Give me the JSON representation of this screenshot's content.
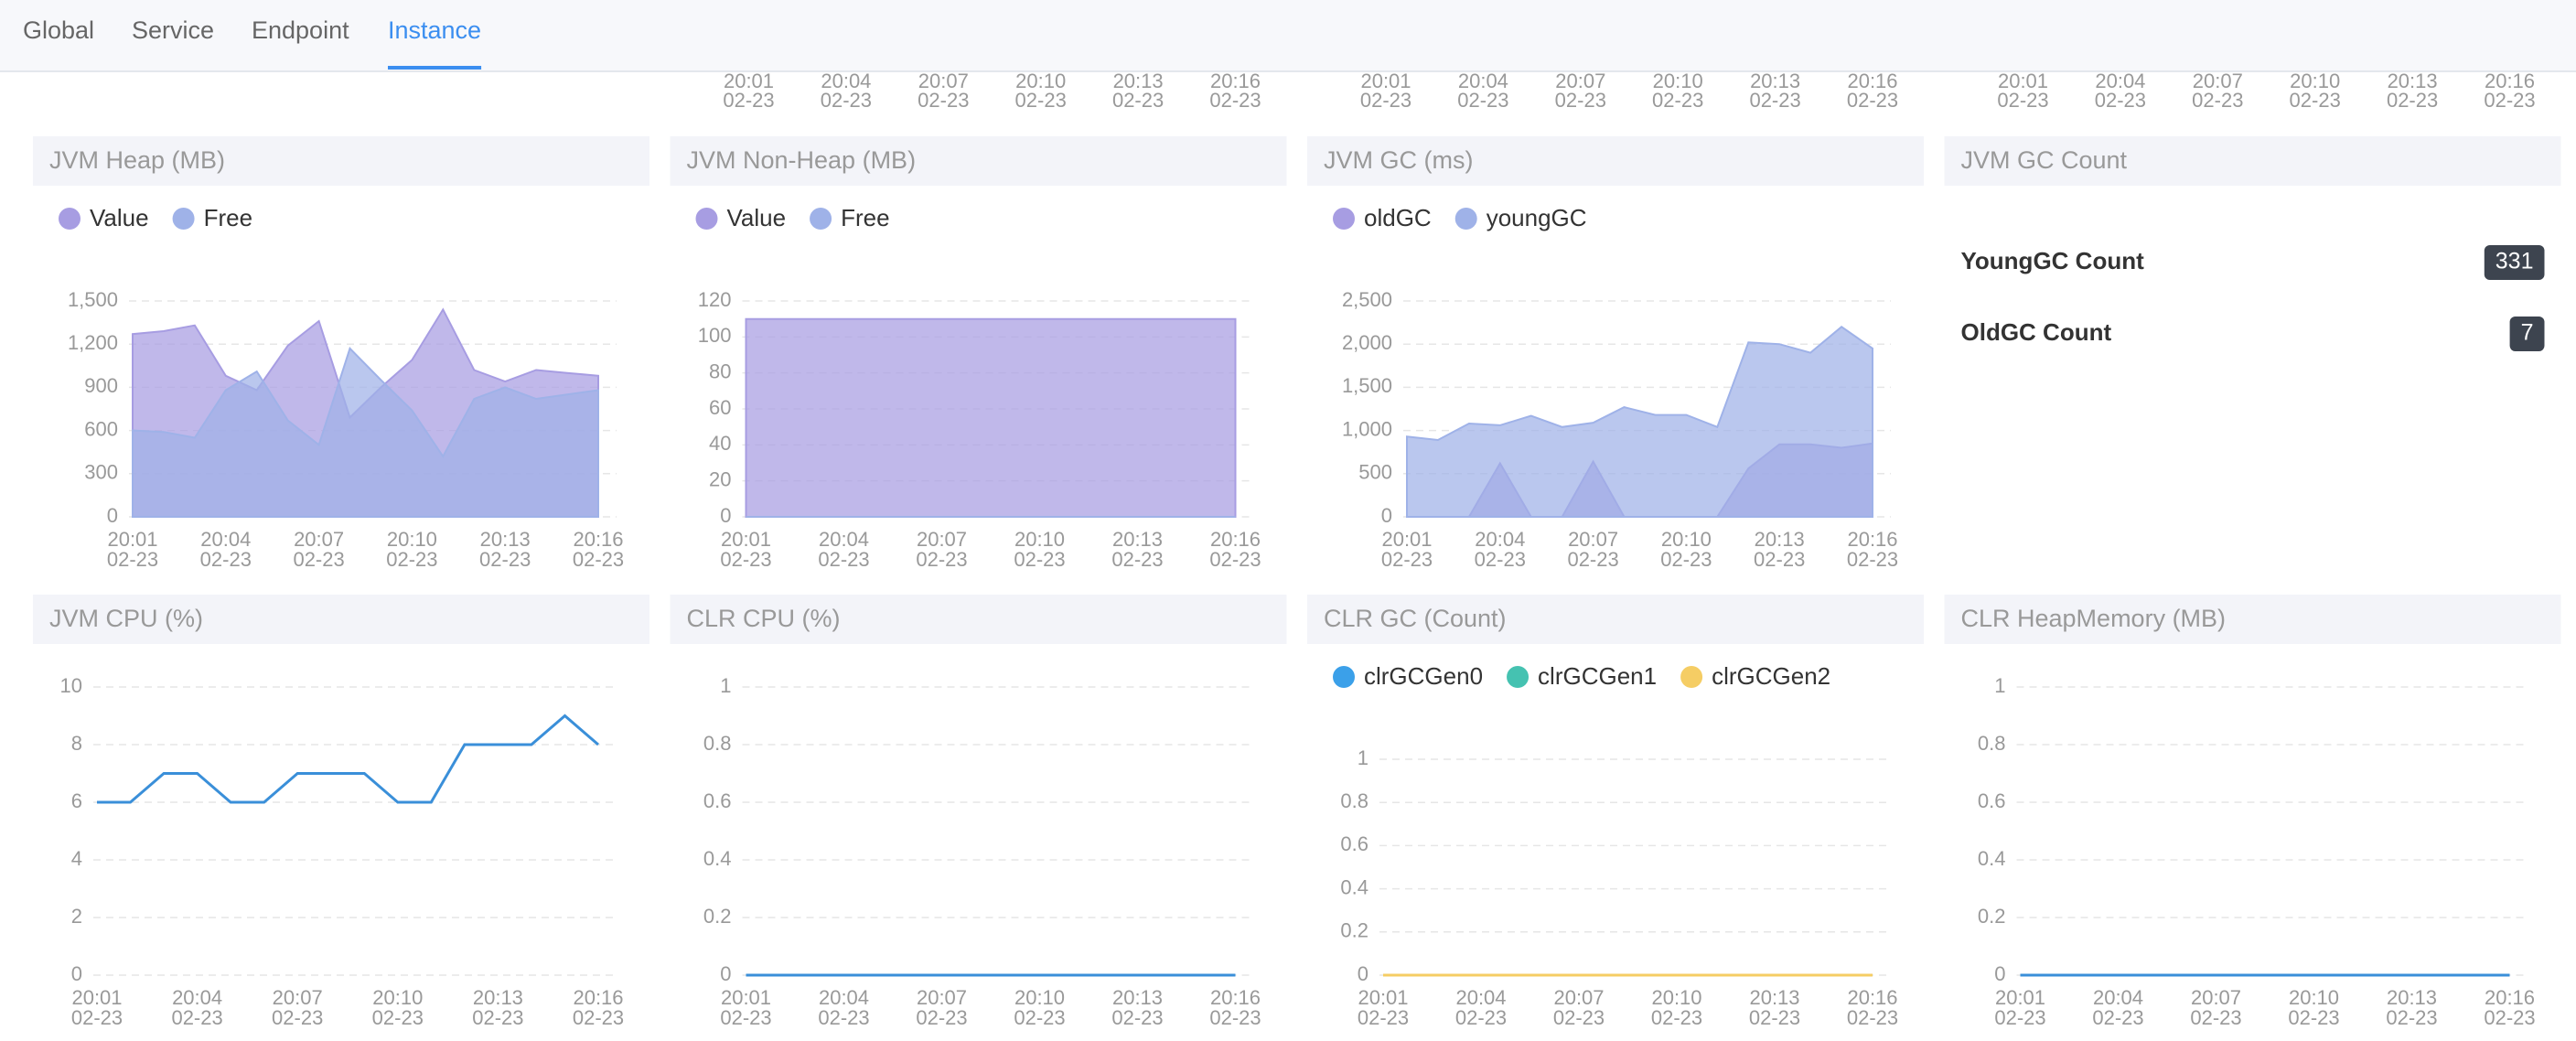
{
  "tabs": [
    "Global",
    "Service",
    "Endpoint",
    "Instance"
  ],
  "active_tab": 3,
  "time_axis": {
    "times": [
      "20:01",
      null,
      null,
      "20:04",
      null,
      null,
      "20:07",
      null,
      null,
      "20:10",
      null,
      null,
      "20:13",
      null,
      null,
      "20:16"
    ],
    "dates": [
      "02-23",
      null,
      null,
      "02-23",
      null,
      null,
      "02-23",
      null,
      null,
      "02-23",
      null,
      null,
      "02-23",
      null,
      null,
      "02-23"
    ]
  },
  "chart_data": [
    {
      "type": "area",
      "title": "JVM Heap (MB)",
      "grid": true,
      "ylim": [
        0,
        1500
      ],
      "yticks": [
        0,
        300,
        600,
        900,
        {
          "value": 1200,
          "label": "1,200"
        },
        {
          "value": 1500,
          "label": "1,500"
        }
      ],
      "series": [
        {
          "name": "Value",
          "color": "#a79de2",
          "values": [
            1270,
            1290,
            1330,
            980,
            880,
            1190,
            1360,
            690,
            900,
            1090,
            1440,
            1020,
            940,
            1020,
            1000,
            980
          ]
        },
        {
          "name": "Free",
          "color": "#9fb2e8",
          "values": [
            600,
            590,
            550,
            880,
            1010,
            670,
            500,
            1170,
            950,
            740,
            420,
            820,
            900,
            820,
            850,
            880
          ]
        }
      ]
    },
    {
      "type": "area",
      "title": "JVM Non-Heap (MB)",
      "grid": true,
      "ylim": [
        0,
        120
      ],
      "yticks": [
        0,
        20,
        40,
        60,
        80,
        100,
        120
      ],
      "series": [
        {
          "name": "Value",
          "color": "#a79de2",
          "values": [
            110,
            110,
            110,
            110,
            110,
            110,
            110,
            110,
            110,
            110,
            110,
            110,
            110,
            110,
            110,
            110
          ]
        },
        {
          "name": "Free",
          "color": "#9fb2e8",
          "values": [
            0,
            0,
            0,
            0,
            0,
            0,
            0,
            0,
            0,
            0,
            0,
            0,
            0,
            0,
            0,
            0
          ]
        }
      ]
    },
    {
      "type": "area",
      "title": "JVM GC (ms)",
      "grid": true,
      "ylim": [
        0,
        2500
      ],
      "yticks": [
        0,
        500,
        {
          "value": 1000,
          "label": "1,000"
        },
        {
          "value": 1500,
          "label": "1,500"
        },
        {
          "value": 2000,
          "label": "2,000"
        },
        {
          "value": 2500,
          "label": "2,500"
        }
      ],
      "series": [
        {
          "name": "oldGC",
          "color": "#a79de2",
          "values": [
            0,
            0,
            0,
            620,
            0,
            0,
            640,
            0,
            0,
            0,
            0,
            560,
            840,
            840,
            800,
            850
          ]
        },
        {
          "name": "youngGC",
          "color": "#9fb2e8",
          "values": [
            930,
            890,
            1080,
            1060,
            1170,
            1040,
            1090,
            1270,
            1180,
            1180,
            1040,
            2020,
            2000,
            1900,
            2200,
            1950
          ]
        }
      ]
    },
    {
      "type": "stat",
      "title": "JVM GC Count",
      "items": [
        {
          "label": "YoungGC Count",
          "value": 331
        },
        {
          "label": "OldGC Count",
          "value": 7
        }
      ]
    },
    {
      "type": "line",
      "title": "JVM CPU (%)",
      "grid": true,
      "ylim": [
        0,
        10
      ],
      "yticks": [
        0,
        2,
        4,
        6,
        8,
        10
      ],
      "series": [
        {
          "color": "#3a8fd9",
          "values": [
            6,
            6,
            7,
            7,
            6,
            6,
            7,
            7,
            7,
            6,
            6,
            8,
            8,
            8,
            9,
            8
          ]
        }
      ]
    },
    {
      "type": "line",
      "title": "CLR CPU (%)",
      "grid": true,
      "ylim": [
        0,
        1
      ],
      "yticks": [
        0,
        0.2,
        0.4,
        0.6,
        0.8,
        1
      ],
      "series": [
        {
          "color": "#3a8fd9",
          "values": [
            0,
            0,
            0,
            0,
            0,
            0,
            0,
            0,
            0,
            0,
            0,
            0,
            0,
            0,
            0,
            0
          ]
        }
      ]
    },
    {
      "type": "line",
      "title": "CLR GC (Count)",
      "grid": true,
      "ylim": [
        0,
        1
      ],
      "yticks": [
        0,
        0.2,
        0.4,
        0.6,
        0.8,
        1
      ],
      "series": [
        {
          "name": "clrGCGen0",
          "color": "#3ba0e9",
          "values": [
            0,
            0,
            0,
            0,
            0,
            0,
            0,
            0,
            0,
            0,
            0,
            0,
            0,
            0,
            0,
            0
          ]
        },
        {
          "name": "clrGCGen1",
          "color": "#45c2b1",
          "values": [
            0,
            0,
            0,
            0,
            0,
            0,
            0,
            0,
            0,
            0,
            0,
            0,
            0,
            0,
            0,
            0
          ]
        },
        {
          "name": "clrGCGen2",
          "color": "#f5cd64",
          "values": [
            0,
            0,
            0,
            0,
            0,
            0,
            0,
            0,
            0,
            0,
            0,
            0,
            0,
            0,
            0,
            0
          ]
        }
      ]
    },
    {
      "type": "line",
      "title": "CLR HeapMemory (MB)",
      "grid": true,
      "ylim": [
        0,
        1
      ],
      "yticks": [
        0,
        0.2,
        0.4,
        0.6,
        0.8,
        1
      ],
      "series": [
        {
          "color": "#3a8fd9",
          "values": [
            0,
            0,
            0,
            0,
            0,
            0,
            0,
            0,
            0,
            0,
            0,
            0,
            0,
            0,
            0,
            0
          ]
        }
      ]
    }
  ]
}
